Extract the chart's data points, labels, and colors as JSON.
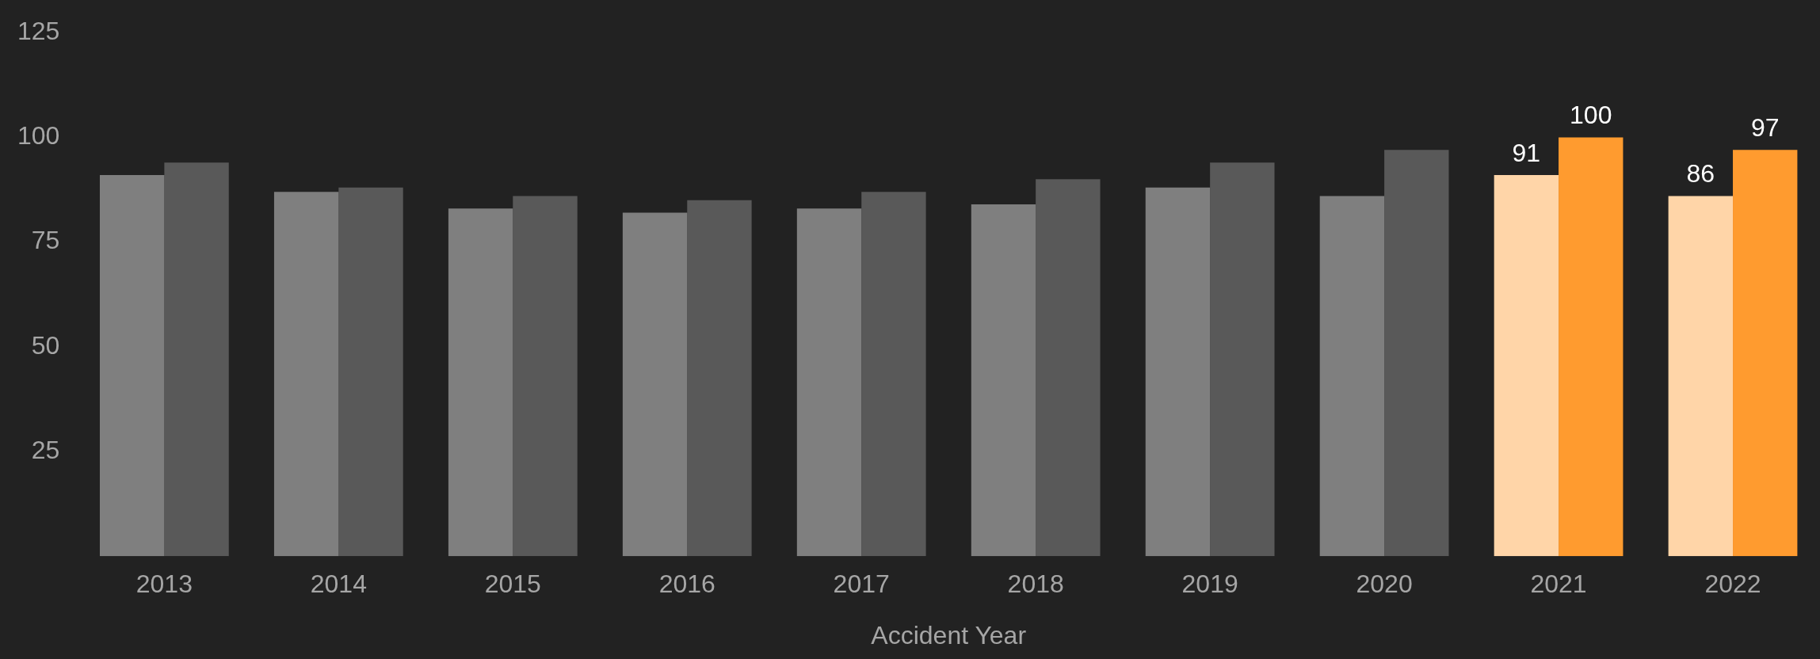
{
  "chart_data": {
    "type": "bar",
    "xlabel": "Accident Year",
    "categories": [
      "2013",
      "2014",
      "2015",
      "2016",
      "2017",
      "2018",
      "2019",
      "2020",
      "2021",
      "2022"
    ],
    "series": [
      {
        "colors": [
          "#7f7f7f",
          "#7f7f7f",
          "#7f7f7f",
          "#7f7f7f",
          "#7f7f7f",
          "#7f7f7f",
          "#7f7f7f",
          "#7f7f7f",
          "#ffd5a8",
          "#ffd5a8"
        ],
        "values": [
          91,
          87,
          83,
          82,
          83,
          84,
          88,
          86,
          91,
          86
        ],
        "value_labels": [
          null,
          null,
          null,
          null,
          null,
          null,
          null,
          null,
          "91",
          "86"
        ]
      },
      {
        "colors": [
          "#595959",
          "#595959",
          "#595959",
          "#595959",
          "#595959",
          "#595959",
          "#595959",
          "#595959",
          "#ff9b2f",
          "#ff9b2f"
        ],
        "values": [
          94,
          88,
          86,
          85,
          87,
          90,
          94,
          97,
          100,
          97
        ],
        "value_labels": [
          null,
          null,
          null,
          null,
          null,
          null,
          null,
          null,
          "100",
          "97"
        ]
      }
    ],
    "ylim": [
      0,
      125
    ],
    "yticks": [
      25,
      50,
      75,
      100,
      125
    ],
    "grid": false,
    "legend": false
  }
}
